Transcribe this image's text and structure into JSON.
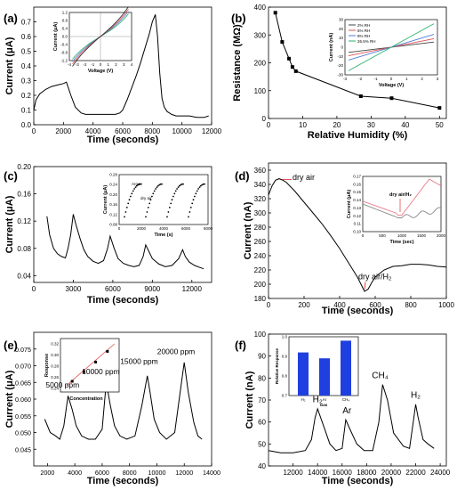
{
  "figure": {
    "panels": [
      "a",
      "b",
      "c",
      "d",
      "e",
      "f"
    ]
  },
  "chart_data": [
    {
      "panel": "(a)",
      "type": "line",
      "ylabel": "Current (μA)",
      "xlabel": "Time (seconds)",
      "xlim": [
        0,
        12000
      ],
      "ylim": [
        0,
        0.8
      ],
      "xticks": [
        "0",
        "2000",
        "4000",
        "6000",
        "8000",
        "10000",
        "12000"
      ],
      "yticks": [
        "0.0",
        "0.1",
        "0.2",
        "0.3",
        "0.4",
        "0.5",
        "0.6",
        "0.7"
      ],
      "series": [
        {
          "x": [
            0,
            150,
            400,
            800,
            1200,
            1600,
            2000,
            2200,
            2500,
            2800,
            3200,
            3500,
            4000,
            4500,
            5000,
            5500,
            5800,
            6000,
            6300,
            6600,
            6900,
            7200,
            7500,
            7800,
            8000,
            8200,
            8350,
            8500,
            8650,
            8800,
            9000,
            9300,
            9600,
            10000,
            10500,
            11000,
            11500,
            11800
          ],
          "y": [
            0.1,
            0.17,
            0.21,
            0.24,
            0.26,
            0.27,
            0.28,
            0.29,
            0.2,
            0.12,
            0.08,
            0.07,
            0.07,
            0.07,
            0.07,
            0.07,
            0.08,
            0.1,
            0.17,
            0.25,
            0.33,
            0.42,
            0.52,
            0.62,
            0.7,
            0.75,
            0.6,
            0.35,
            0.18,
            0.12,
            0.09,
            0.07,
            0.06,
            0.06,
            0.06,
            0.05,
            0.05,
            0.06
          ]
        }
      ],
      "inset": {
        "xlabel": "Voltage (V)",
        "ylabel": "Current (μA)",
        "xticks": [
          "-4",
          "-3",
          "-2",
          "-1",
          "0",
          "1",
          "2",
          "3",
          "4"
        ],
        "yticks": [
          "-1.2",
          "-0.8",
          "-0.4",
          "0.0",
          "0.4",
          "0.8",
          "1.2"
        ]
      }
    },
    {
      "panel": "(b)",
      "type": "line",
      "ylabel": "Resistance (MΩ)",
      "xlabel": "Relative Humidity (%)",
      "xlim": [
        0,
        52
      ],
      "ylim": [
        0,
        400
      ],
      "xticks": [
        "0",
        "10",
        "20",
        "30",
        "40",
        "50"
      ],
      "yticks": [
        "0",
        "100",
        "200",
        "300",
        "400"
      ],
      "series": [
        {
          "x": [
            2,
            4,
            6,
            7,
            8,
            27,
            36,
            50
          ],
          "y": [
            380,
            275,
            215,
            185,
            170,
            80,
            73,
            38
          ]
        }
      ],
      "inset": {
        "xlabel": "Voltage (V)",
        "ylabel": "Current (nA)",
        "xticks": [
          "-3",
          "-2",
          "-1",
          "0",
          "1",
          "2",
          "3"
        ],
        "yticks": [
          "-30",
          "-20",
          "-10",
          "0",
          "10",
          "20",
          "30"
        ],
        "legend": [
          "2% RH",
          "6% RH",
          "8% RH",
          "26.5% RH"
        ],
        "colors": [
          "#444444",
          "#e05050",
          "#4f7fd8",
          "#2bb36b"
        ]
      }
    },
    {
      "panel": "(c)",
      "type": "line",
      "ylabel": "Current (μA)",
      "xlabel": "Time (seconds)",
      "xlim": [
        0,
        13500
      ],
      "ylim": [
        0.03,
        0.2
      ],
      "xticks": [
        "0",
        "3000",
        "6000",
        "9000",
        "12000"
      ],
      "yticks": [
        "0.04",
        "0.08",
        "0.12",
        "0.16",
        "0.20"
      ],
      "series": [
        {
          "x": [
            1000,
            1200,
            1500,
            1800,
            2100,
            2400,
            2600,
            2800,
            3000,
            3200,
            3500,
            3800,
            4100,
            4500,
            4900,
            5300,
            5600,
            5800,
            6100,
            6400,
            6800,
            7200,
            7600,
            8000,
            8300,
            8500,
            8700,
            9000,
            9500,
            10000,
            10500,
            11000,
            11300,
            11500,
            11800,
            12200,
            12600,
            12900
          ],
          "y": [
            0.127,
            0.1,
            0.08,
            0.072,
            0.068,
            0.066,
            0.08,
            0.1,
            0.13,
            0.115,
            0.095,
            0.078,
            0.068,
            0.061,
            0.058,
            0.062,
            0.08,
            0.098,
            0.08,
            0.065,
            0.058,
            0.055,
            0.053,
            0.055,
            0.068,
            0.085,
            0.077,
            0.065,
            0.057,
            0.053,
            0.055,
            0.065,
            0.078,
            0.068,
            0.06,
            0.055,
            0.052,
            0.05
          ]
        }
      ],
      "inset": {
        "xlabel": "Time (s)",
        "ylabel": "Current (μA)",
        "xticks": [
          "0",
          "2000",
          "4000",
          "6000",
          "8000"
        ],
        "yticks": [
          "0.08",
          "0.12",
          "0.16",
          "0.20",
          "0.24",
          "0.28"
        ],
        "annotations": [
          "Argon",
          "dry air"
        ]
      }
    },
    {
      "panel": "(d)",
      "type": "line",
      "ylabel": "Current (nA)",
      "xlabel": "Time (seconds)",
      "xlim": [
        0,
        1000
      ],
      "ylim": [
        180,
        370
      ],
      "xticks": [
        "0",
        "200",
        "400",
        "600",
        "800",
        "1000"
      ],
      "yticks": [
        "180",
        "200",
        "220",
        "240",
        "260",
        "280",
        "300",
        "320",
        "340",
        "360"
      ],
      "series": [
        {
          "x": [
            0,
            20,
            40,
            60,
            80,
            100,
            150,
            200,
            250,
            300,
            350,
            400,
            450,
            500,
            520,
            540,
            560,
            580,
            600,
            650,
            700,
            750,
            800,
            850,
            900,
            950,
            1000
          ],
          "y": [
            325,
            338,
            346,
            348,
            346,
            343,
            330,
            315,
            300,
            285,
            268,
            250,
            230,
            210,
            200,
            190,
            193,
            202,
            210,
            220,
            225,
            226,
            228,
            228,
            227,
            225,
            224
          ]
        }
      ],
      "annotations": [
        "dry air",
        "dry air/H₂"
      ],
      "inset": {
        "xlabel": "Time (sec)",
        "ylabel": "Current (μA)",
        "xticks": [
          "0",
          "500",
          "1000",
          "1500",
          "2000"
        ],
        "yticks": [
          "0.10",
          "0.11",
          "0.12",
          "0.13",
          "0.14",
          "0.15",
          "0.16",
          "0.17"
        ],
        "annotations": [
          "dry air/H₂"
        ]
      }
    },
    {
      "panel": "(e)",
      "type": "line",
      "ylabel": "Current (μA)",
      "xlabel": "Time (seconds)",
      "xlim": [
        1000,
        14000
      ],
      "ylim": [
        0.04,
        0.08
      ],
      "xticks": [
        "2000",
        "4000",
        "6000",
        "8000",
        "10000",
        "12000",
        "14000"
      ],
      "yticks": [
        "0.045",
        "0.050",
        "0.055",
        "0.060",
        "0.065",
        "0.070",
        "0.075"
      ],
      "series": [
        {
          "x": [
            1800,
            2200,
            2600,
            2900,
            3200,
            3500,
            3800,
            4100,
            4500,
            5000,
            5500,
            6000,
            6300,
            6600,
            6900,
            7300,
            7800,
            8400,
            8900,
            9300,
            9500,
            9800,
            10200,
            10700,
            11300,
            11700,
            12000,
            12300,
            12700,
            13000,
            13300
          ],
          "y": [
            0.054,
            0.05,
            0.049,
            0.048,
            0.052,
            0.061,
            0.057,
            0.052,
            0.049,
            0.048,
            0.048,
            0.051,
            0.065,
            0.058,
            0.052,
            0.049,
            0.048,
            0.049,
            0.058,
            0.067,
            0.062,
            0.054,
            0.05,
            0.048,
            0.05,
            0.062,
            0.071,
            0.062,
            0.053,
            0.049,
            0.048
          ]
        }
      ],
      "annotations": [
        "5000 ppm",
        "10000 ppm",
        "15000 ppm",
        "20000 ppm"
      ],
      "inset": {
        "xlabel": "Concentration",
        "ylabel": "Response",
        "yticks": [
          "0.24",
          "0.26",
          "0.28",
          "0.30",
          "0.32"
        ]
      }
    },
    {
      "panel": "(f)",
      "type": "line",
      "ylabel": "Current (nA)",
      "xlabel": "Time (seconds)",
      "xlim": [
        10000,
        24500
      ],
      "ylim": [
        40,
        100
      ],
      "xticks": [
        "12000",
        "14000",
        "16000",
        "18000",
        "20000",
        "22000",
        "24000"
      ],
      "yticks": [
        "40",
        "50",
        "60",
        "70",
        "80",
        "90",
        "100"
      ],
      "series": [
        {
          "x": [
            10000,
            11000,
            12000,
            13000,
            13500,
            13800,
            14000,
            14500,
            15000,
            15500,
            16000,
            16300,
            16700,
            17200,
            17800,
            18500,
            19000,
            19300,
            19700,
            20200,
            21000,
            21500,
            21800,
            22000,
            22200,
            22600,
            23000,
            23500
          ],
          "y": [
            47,
            46,
            46,
            47,
            52,
            62,
            66,
            58,
            50,
            47,
            48,
            61,
            56,
            50,
            47,
            47,
            60,
            77,
            70,
            55,
            49,
            48,
            60,
            68,
            62,
            52,
            50,
            48
          ]
        }
      ],
      "annotations": [
        "H₂",
        "Ar",
        "CH₄",
        "H₂"
      ],
      "inset": {
        "type": "bar",
        "ylabel": "Relative Response",
        "xlabel": "Gas",
        "categories": [
          "H₂",
          "Ar",
          "CH₄"
        ],
        "values": [
          0.92,
          0.89,
          0.98
        ],
        "yticks": [
          "0.7",
          "0.8",
          "0.9",
          "1.0"
        ],
        "color": "#1f3fe0"
      }
    }
  ]
}
